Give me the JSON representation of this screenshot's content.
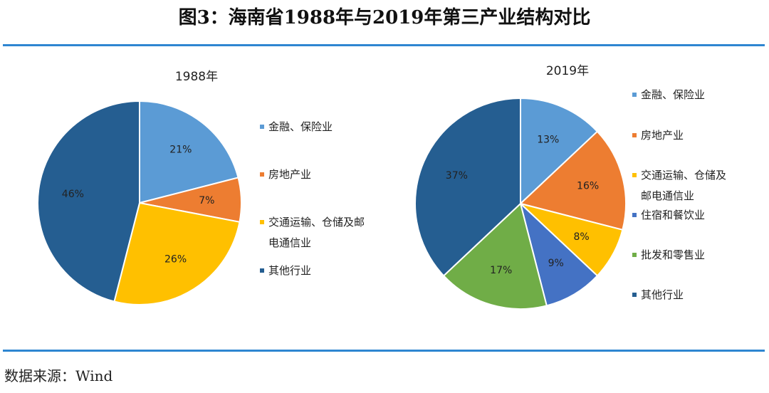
{
  "header": {
    "title": "图3：海南省1988年与2019年第三产业结构对比"
  },
  "footer": {
    "source": "数据来源：Wind"
  },
  "chart_data": [
    {
      "type": "pie",
      "title": "1988年",
      "categories": [
        "金融、保险业",
        "房地产业",
        "交通运输、仓储及邮电通信业",
        "其他行业"
      ],
      "values": [
        21,
        7,
        26,
        46
      ],
      "value_labels": [
        "21%",
        "7%",
        "26%",
        "46%"
      ],
      "colors": [
        "#5b9bd5",
        "#ed7d31",
        "#ffc000",
        "#255e91"
      ]
    },
    {
      "type": "pie",
      "title": "2019年",
      "categories": [
        "金融、保险业",
        "房地产业",
        "交通运输、仓储及邮电通信业",
        "住宿和餐饮业",
        "批发和零售业",
        "其他行业"
      ],
      "values": [
        13,
        16,
        8,
        9,
        17,
        37
      ],
      "value_labels": [
        "13%",
        "16%",
        "8%",
        "9%",
        "17%",
        "37%"
      ],
      "colors": [
        "#5b9bd5",
        "#ed7d31",
        "#ffc000",
        "#4472c4",
        "#70ad47",
        "#255e91"
      ]
    }
  ]
}
